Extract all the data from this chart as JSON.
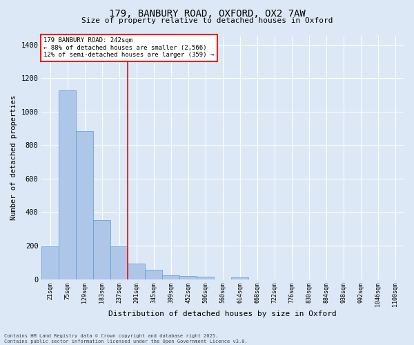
{
  "title_line1": "179, BANBURY ROAD, OXFORD, OX2 7AW",
  "title_line2": "Size of property relative to detached houses in Oxford",
  "xlabel": "Distribution of detached houses by size in Oxford",
  "ylabel": "Number of detached properties",
  "annotation_line1": "179 BANBURY ROAD: 242sqm",
  "annotation_line2": "← 88% of detached houses are smaller (2,566)",
  "annotation_line3": "12% of semi-detached houses are larger (359) →",
  "bin_labels": [
    "21sqm",
    "75sqm",
    "129sqm",
    "183sqm",
    "237sqm",
    "291sqm",
    "345sqm",
    "399sqm",
    "452sqm",
    "506sqm",
    "560sqm",
    "614sqm",
    "668sqm",
    "722sqm",
    "776sqm",
    "830sqm",
    "884sqm",
    "938sqm",
    "992sqm",
    "1046sqm",
    "1100sqm"
  ],
  "bar_values": [
    196,
    1127,
    884,
    352,
    197,
    93,
    57,
    22,
    20,
    15,
    0,
    12,
    0,
    0,
    0,
    0,
    0,
    0,
    0,
    0,
    0
  ],
  "bar_color": "#aec6e8",
  "bar_edge_color": "#5b9bd5",
  "vline_x": 4.5,
  "vline_color": "red",
  "bg_color": "#dce8f5",
  "grid_color": "#ffffff",
  "annotation_box_color": "#ffffff",
  "annotation_box_edge": "red",
  "ylim": [
    0,
    1450
  ],
  "yticks": [
    0,
    200,
    400,
    600,
    800,
    1000,
    1200,
    1400
  ],
  "footer_line1": "Contains HM Land Registry data © Crown copyright and database right 2025.",
  "footer_line2": "Contains public sector information licensed under the Open Government Licence v3.0."
}
